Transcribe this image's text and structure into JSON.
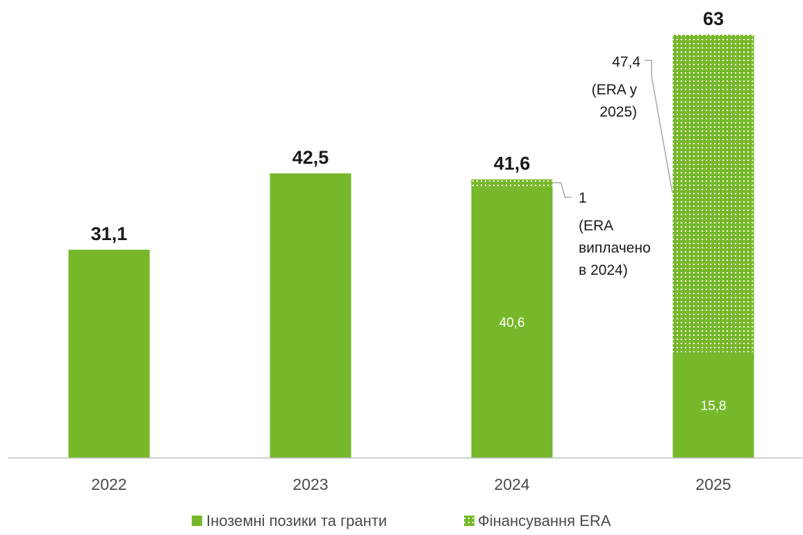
{
  "chart_data": {
    "type": "bar",
    "stacked": true,
    "categories": [
      "2022",
      "2023",
      "2024",
      "2025"
    ],
    "series": [
      {
        "name": "Іноземні позики та гранти",
        "values": [
          31.1,
          42.5,
          40.6,
          15.8
        ],
        "color": "#76b82a",
        "pattern": "solid"
      },
      {
        "name": "Фінансування ERA",
        "values": [
          0,
          0,
          1,
          47.4
        ],
        "color": "#76b82a",
        "pattern": "dotted"
      }
    ],
    "totals": [
      "31,1",
      "42,5",
      "41,6",
      "63"
    ],
    "segment_labels": {
      "2024": "40,6",
      "2025": "15,8"
    },
    "annotations": [
      {
        "category": "2024",
        "value_label": "1",
        "lines": [
          "(ERA",
          "виплачено",
          "в 2024)"
        ]
      },
      {
        "category": "2025",
        "value_label": "47,4",
        "lines": [
          "(ERA у",
          "2025)"
        ]
      }
    ],
    "ylim": [
      0,
      63
    ],
    "grid": false,
    "legend_position": "bottom",
    "xlabel": "",
    "ylabel": ""
  }
}
